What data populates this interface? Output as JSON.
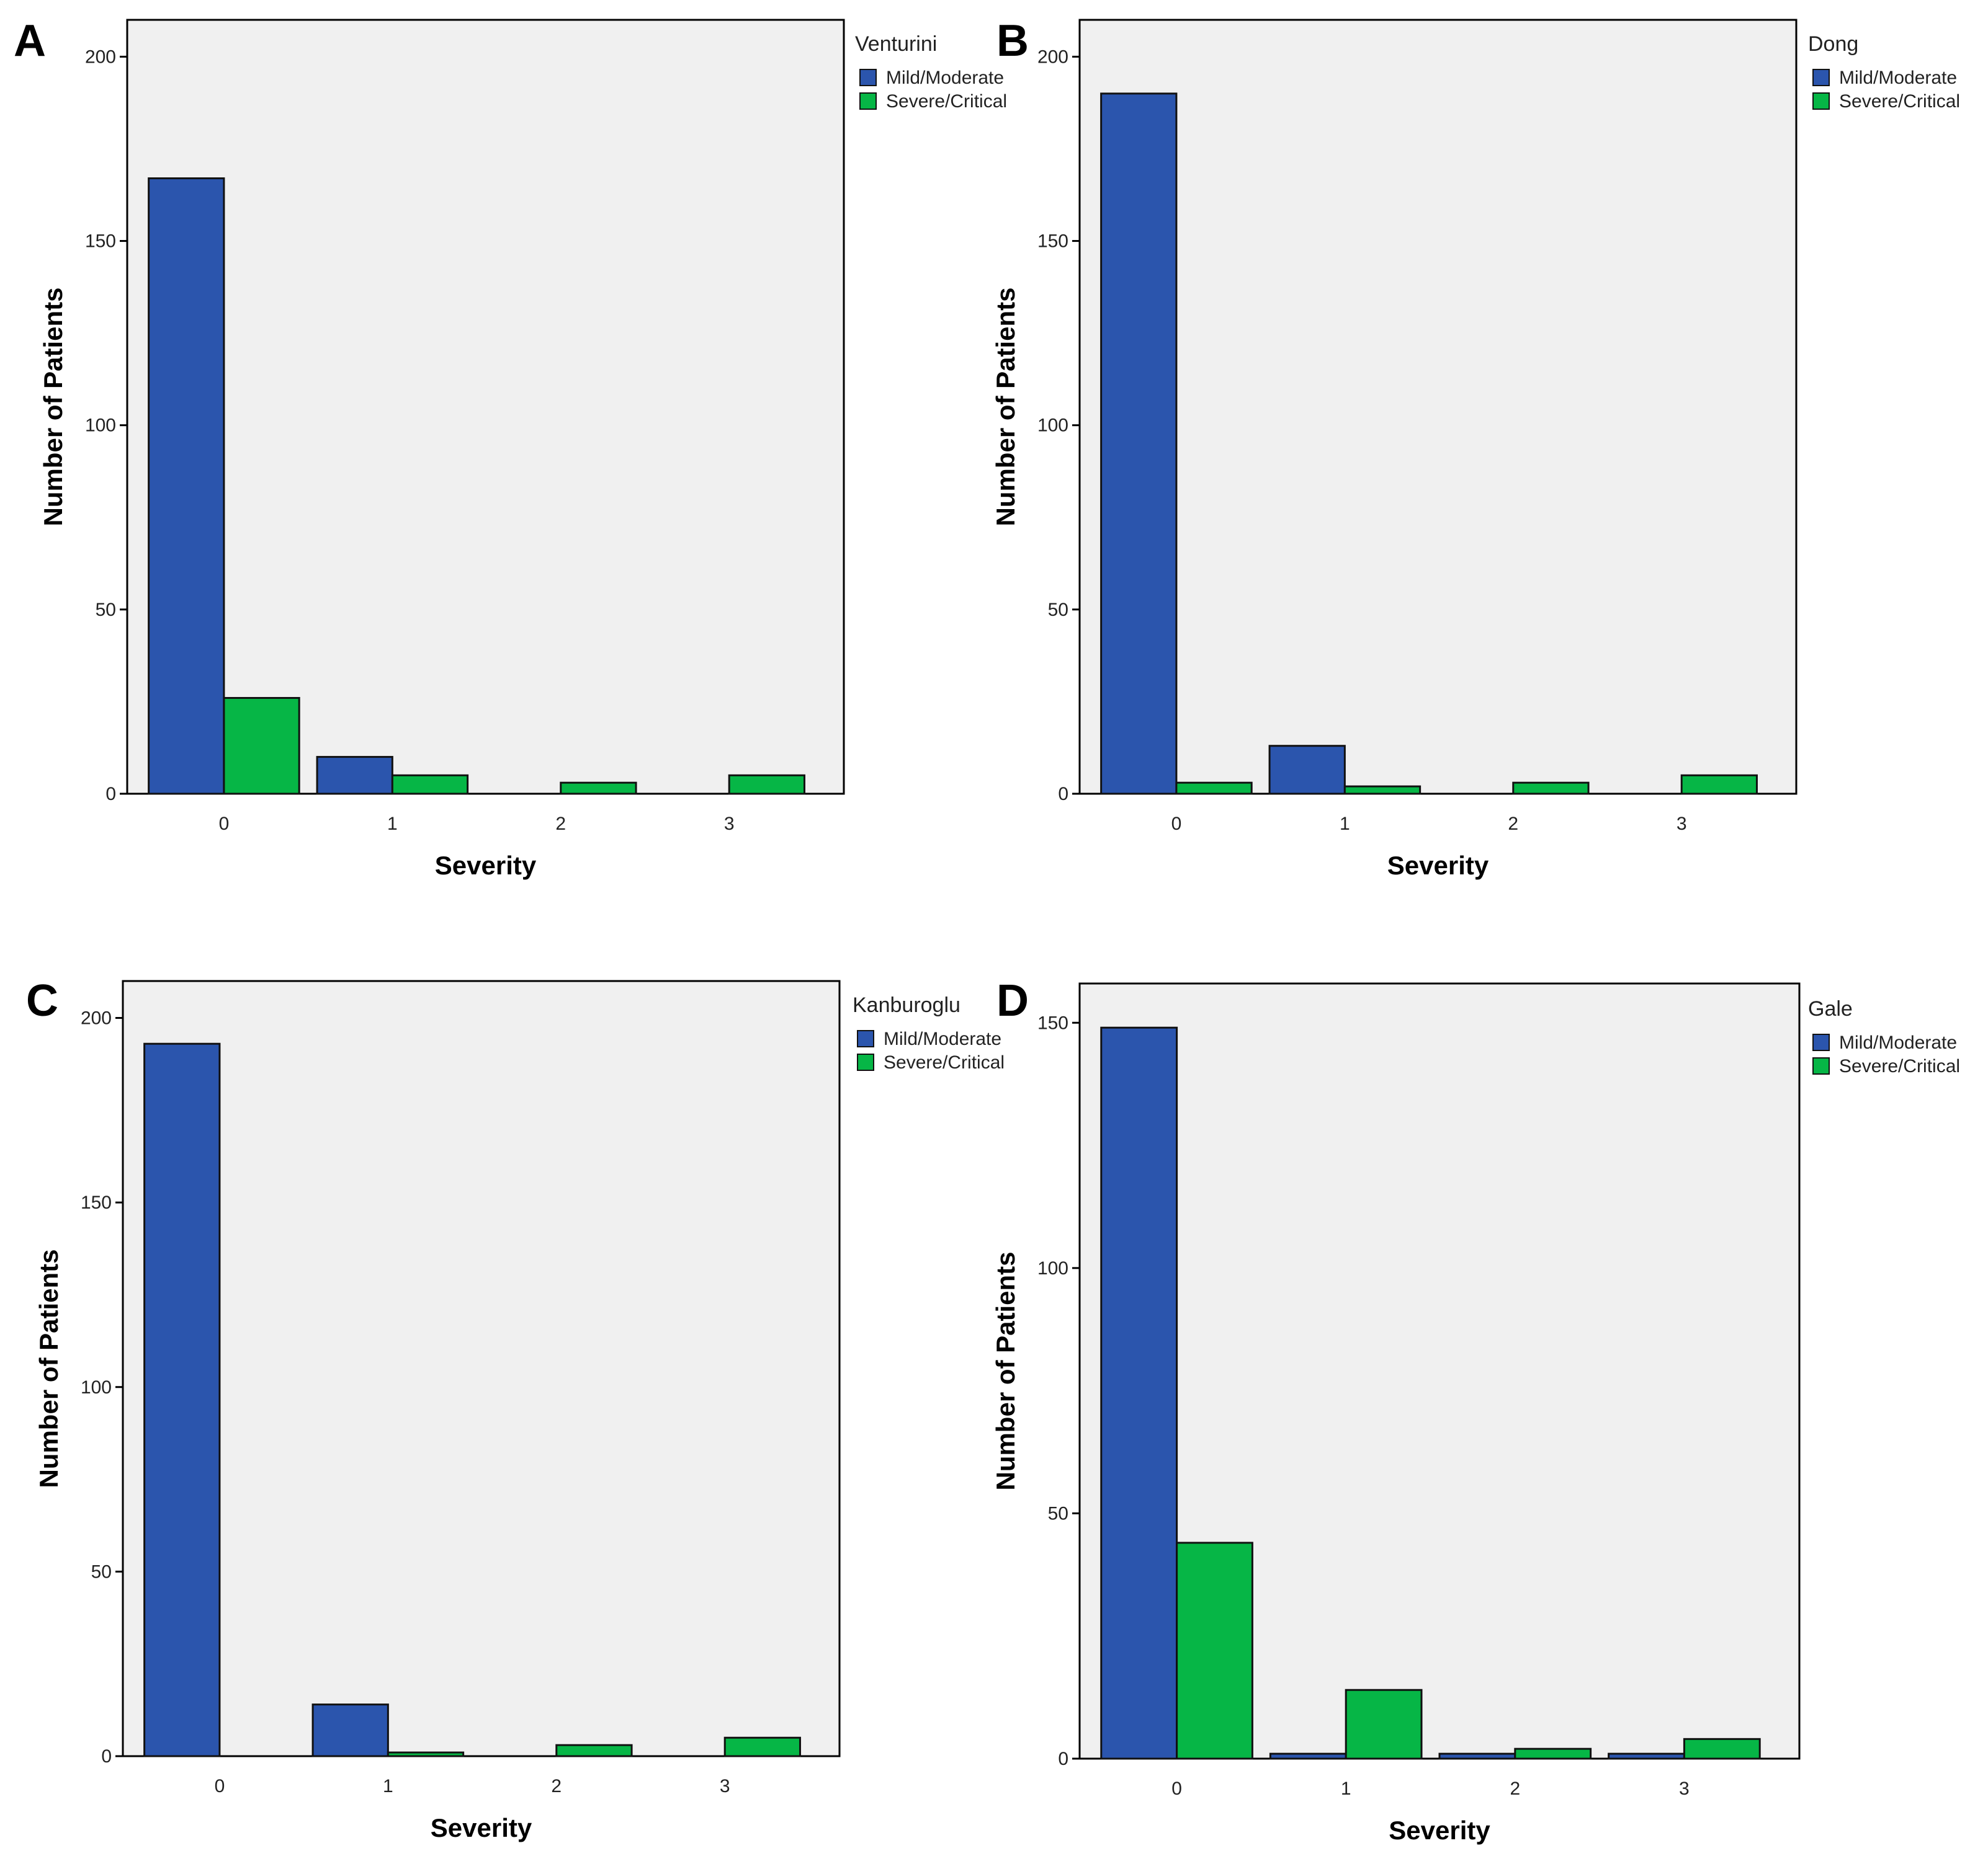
{
  "colors": {
    "mild_moderate": "#2b55ad",
    "severe_critical": "#06b646",
    "plot_background": "#f0f0f0",
    "axis": "#000000"
  },
  "chart_data": [
    {
      "type": "bar",
      "panel": "A",
      "legend_title": "Venturini",
      "xlabel": "Severity",
      "ylabel": "Number of Patients",
      "categories": [
        "0",
        "1",
        "2",
        "3"
      ],
      "ylim": [
        0,
        210
      ],
      "yticks": [
        0,
        50,
        100,
        150,
        200
      ],
      "legend_position": "right-outside-top",
      "series": [
        {
          "name": "Mild/Moderate",
          "color": "mild_moderate",
          "values": [
            167,
            10,
            0,
            0
          ]
        },
        {
          "name": "Severe/Critical",
          "color": "severe_critical",
          "values": [
            26,
            5,
            3,
            5
          ]
        }
      ]
    },
    {
      "type": "bar",
      "panel": "B",
      "legend_title": "Dong",
      "xlabel": "Severity",
      "ylabel": "Number of Patients",
      "categories": [
        "0",
        "1",
        "2",
        "3"
      ],
      "ylim": [
        0,
        210
      ],
      "yticks": [
        0,
        50,
        100,
        150,
        200
      ],
      "legend_position": "right-outside-top",
      "series": [
        {
          "name": "Mild/Moderate",
          "color": "mild_moderate",
          "values": [
            190,
            13,
            0,
            0
          ]
        },
        {
          "name": "Severe/Critical",
          "color": "severe_critical",
          "values": [
            3,
            2,
            3,
            5
          ]
        }
      ]
    },
    {
      "type": "bar",
      "panel": "C",
      "legend_title": "Kanburoglu",
      "xlabel": "Severity",
      "ylabel": "Number of Patients",
      "categories": [
        "0",
        "1",
        "2",
        "3"
      ],
      "ylim": [
        0,
        210
      ],
      "yticks": [
        0,
        50,
        100,
        150,
        200
      ],
      "legend_position": "right-outside-top",
      "series": [
        {
          "name": "Mild/Moderate",
          "color": "mild_moderate",
          "values": [
            193,
            14,
            0,
            0
          ]
        },
        {
          "name": "Severe/Critical",
          "color": "severe_critical",
          "values": [
            0,
            1,
            3,
            5
          ]
        }
      ]
    },
    {
      "type": "bar",
      "panel": "D",
      "legend_title": "Gale",
      "xlabel": "Severity",
      "ylabel": "Number of Patients",
      "categories": [
        "0",
        "1",
        "2",
        "3"
      ],
      "ylim": [
        0,
        158
      ],
      "yticks": [
        0,
        50,
        100,
        150
      ],
      "legend_position": "right-outside-top",
      "series": [
        {
          "name": "Mild/Moderate",
          "color": "mild_moderate",
          "values": [
            149,
            1,
            1,
            1
          ]
        },
        {
          "name": "Severe/Critical",
          "color": "severe_critical",
          "values": [
            44,
            14,
            2,
            4
          ]
        }
      ]
    }
  ]
}
